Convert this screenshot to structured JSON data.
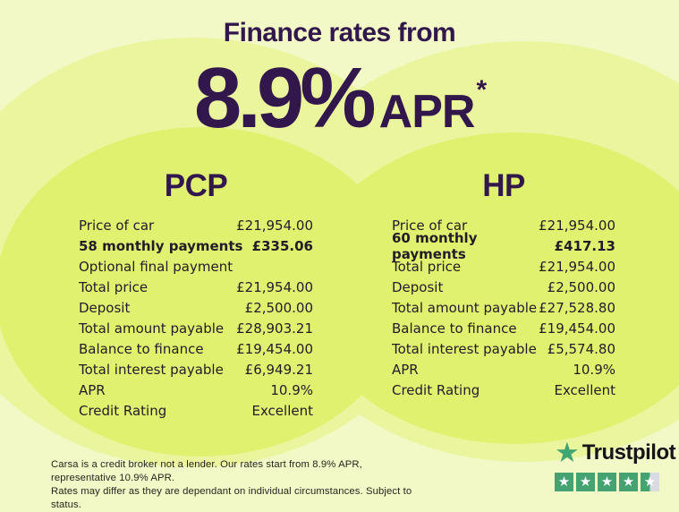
{
  "header": {
    "title": "Finance rates from",
    "rate": "8.9%",
    "rate_suffix": "APR",
    "rate_asterisk": "*"
  },
  "columns": [
    {
      "name": "PCP",
      "rows": [
        {
          "label": "Price of car",
          "value": "£21,954.00"
        },
        {
          "label": "58 monthly payments",
          "value": "£335.06",
          "bold": true
        },
        {
          "label": "Optional final payment",
          "value": ""
        },
        {
          "label": "Total price",
          "value": "£21,954.00"
        },
        {
          "label": "Deposit",
          "value": "£2,500.00"
        },
        {
          "label": "Total amount payable",
          "value": "£28,903.21"
        },
        {
          "label": "Balance to finance",
          "value": "£19,454.00"
        },
        {
          "label": "Total interest payable",
          "value": "£6,949.21"
        },
        {
          "label": "APR",
          "value": "10.9%"
        },
        {
          "label": "Credit Rating",
          "value": "Excellent"
        }
      ]
    },
    {
      "name": "HP",
      "rows": [
        {
          "label": "Price of car",
          "value": "£21,954.00"
        },
        {
          "label": "60 monthly payments",
          "value": "£417.13",
          "bold": true
        },
        {
          "label": "Total price",
          "value": "£21,954.00"
        },
        {
          "label": "Deposit",
          "value": "£2,500.00"
        },
        {
          "label": "Total amount payable",
          "value": "£27,528.80"
        },
        {
          "label": "Balance to finance",
          "value": "£19,454.00"
        },
        {
          "label": "Total interest payable",
          "value": "£5,574.80"
        },
        {
          "label": "APR",
          "value": "10.9%"
        },
        {
          "label": "Credit Rating",
          "value": "Excellent"
        }
      ]
    }
  ],
  "footer": {
    "disclaimer_line1": "Carsa is a credit broker not a lender. Our rates start from 8.9% APR, representative 10.9% APR.",
    "disclaimer_line2": "Rates may differ as they are dependant on individual circumstances. Subject to status.",
    "trustpilot": {
      "name": "Trustpilot",
      "star_glyph": "★",
      "rating_stars_full": 4,
      "rating_stars_half": 1
    }
  },
  "colors": {
    "background_pale": "#f3f9c6",
    "circle_halo": "#ebf59e",
    "circle_bright": "#e0f170",
    "heading_purple": "#32174d",
    "table_text": "#221c28",
    "trustpilot_green": "#44a371",
    "trustpilot_star_empty": "#d8dbe2"
  }
}
